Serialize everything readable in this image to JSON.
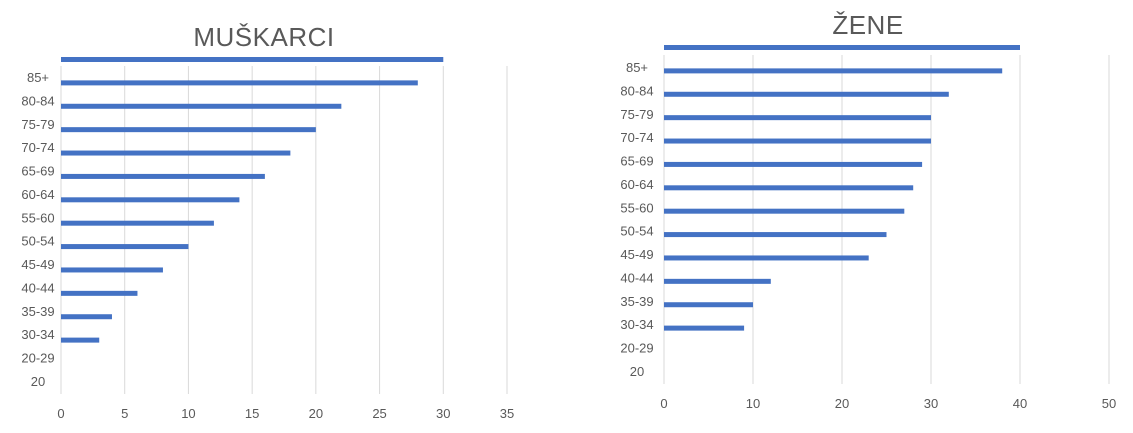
{
  "chart_data": [
    {
      "type": "bar",
      "orientation": "horizontal",
      "title": "MUŠKARCI",
      "categories": [
        "20",
        "20-29",
        "30-34",
        "35-39",
        "40-44",
        "45-49",
        "50-54",
        "55-60",
        "60-64",
        "65-69",
        "70-74",
        "75-79",
        "80-84",
        "85+"
      ],
      "values": [
        0,
        3,
        4,
        6,
        8,
        10,
        12,
        14,
        16,
        18,
        20,
        22,
        28,
        30
      ],
      "xlim": [
        0,
        35
      ],
      "xticks": [
        "0",
        "5",
        "10",
        "15",
        "20",
        "25",
        "30",
        "35"
      ],
      "grid": true,
      "color": "#4472c4"
    },
    {
      "type": "bar",
      "orientation": "horizontal",
      "title": "ŽENE",
      "categories": [
        "20",
        "20-29",
        "30-34",
        "35-39",
        "40-44",
        "45-49",
        "50-54",
        "55-60",
        "60-64",
        "65-69",
        "70-74",
        "75-79",
        "80-84",
        "85+"
      ],
      "values": [
        0,
        9,
        10,
        12,
        23,
        25,
        27,
        28,
        29,
        30,
        30,
        32,
        38,
        40
      ],
      "xlim": [
        0,
        50
      ],
      "xticks": [
        "0",
        "10",
        "20",
        "30",
        "40",
        "50"
      ],
      "grid": true,
      "color": "#4472c4"
    }
  ]
}
